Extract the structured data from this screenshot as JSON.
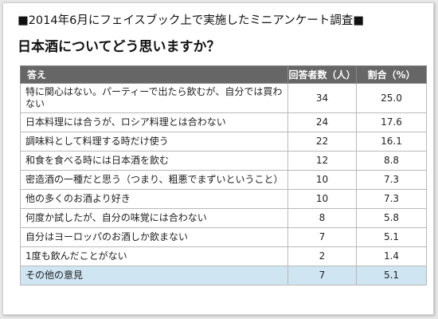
{
  "header": {
    "title": "■2014年6月にフェイスブック上で実施したミニアンケート調査■",
    "question": "日本酒についてどう思いますか？"
  },
  "chart_data": {
    "type": "table",
    "columns": [
      "答え",
      "回答者数（人）",
      "割合（%）"
    ],
    "rows": [
      {
        "answer": "特に関心はない。パーティーで出たら飲むが、自分では買わない",
        "count": "34",
        "percent": "25.0"
      },
      {
        "answer": "日本料理には合うが、ロシア料理とは合わない",
        "count": "24",
        "percent": "17.6"
      },
      {
        "answer": "調味料として料理する時だけ使う",
        "count": "22",
        "percent": "16.1"
      },
      {
        "answer": "和食を食べる時には日本酒を飲む",
        "count": "12",
        "percent": "8.8"
      },
      {
        "answer": "密造酒の一種だと思う（つまり、粗悪でまずいということ）",
        "count": "10",
        "percent": "7.3"
      },
      {
        "answer": "他の多くのお酒より好き",
        "count": "10",
        "percent": "7.3"
      },
      {
        "answer": "何度か試したが、自分の味覚には合わない",
        "count": "8",
        "percent": "5.8"
      },
      {
        "answer": "自分はヨーロッパのお酒しか飲まない",
        "count": "7",
        "percent": "5.1"
      },
      {
        "answer": "1度も飲んだことがない",
        "count": "2",
        "percent": "1.4"
      },
      {
        "answer": "その他の意見",
        "count": "7",
        "percent": "5.1"
      }
    ],
    "highlight_color": "#cfe5f2",
    "header_color": "#666666"
  }
}
